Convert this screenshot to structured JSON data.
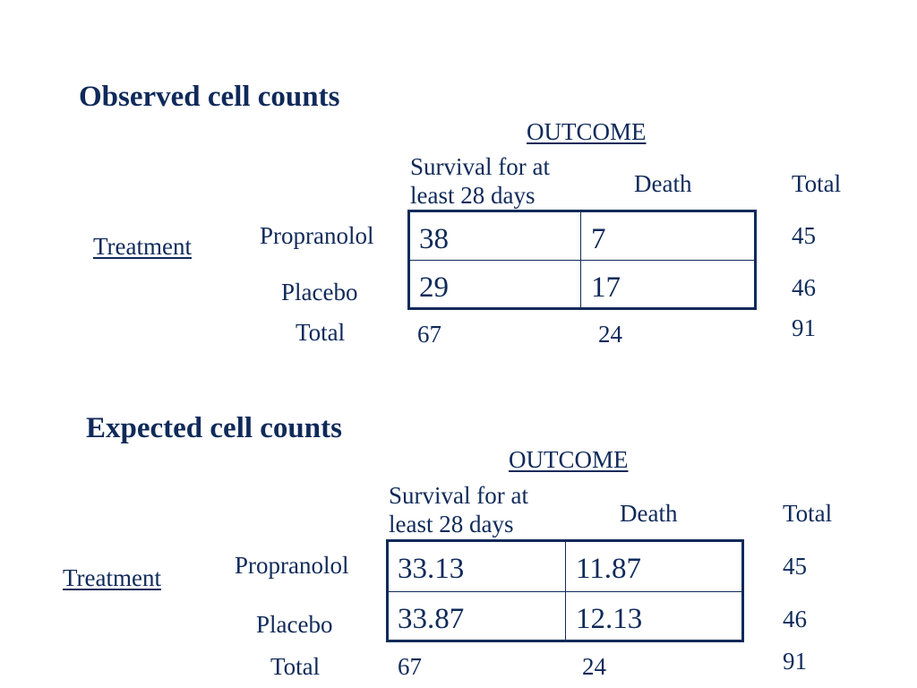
{
  "observed": {
    "title": "Observed cell counts",
    "outcome_label": "OUTCOME",
    "col_survival": "Survival for at least 28 days",
    "col_death": "Death",
    "col_total": "Total",
    "treatment_label": "Treatment",
    "row_propranolol": "Propranolol",
    "row_placebo": "Placebo",
    "row_total": "Total",
    "cells": {
      "propranolol_survival": "38",
      "propranolol_death": "7",
      "placebo_survival": "29",
      "placebo_death": "17"
    },
    "row_totals": {
      "propranolol": "45",
      "placebo": "46"
    },
    "col_totals": {
      "survival": "67",
      "death": "24",
      "grand": "91"
    }
  },
  "expected": {
    "title": "Expected cell counts",
    "outcome_label": "OUTCOME",
    "col_survival": "Survival for at least 28 days",
    "col_death": "Death",
    "col_total": "Total",
    "treatment_label": "Treatment",
    "row_propranolol": "Propranolol",
    "row_placebo": "Placebo",
    "row_total": "Total",
    "cells": {
      "propranolol_survival": "33.13",
      "propranolol_death": "11.87",
      "placebo_survival": "33.87",
      "placebo_death": "12.13"
    },
    "row_totals": {
      "propranolol": "45",
      "placebo": "46"
    },
    "col_totals": {
      "survival": "67",
      "death": "24",
      "grand": "91"
    }
  }
}
